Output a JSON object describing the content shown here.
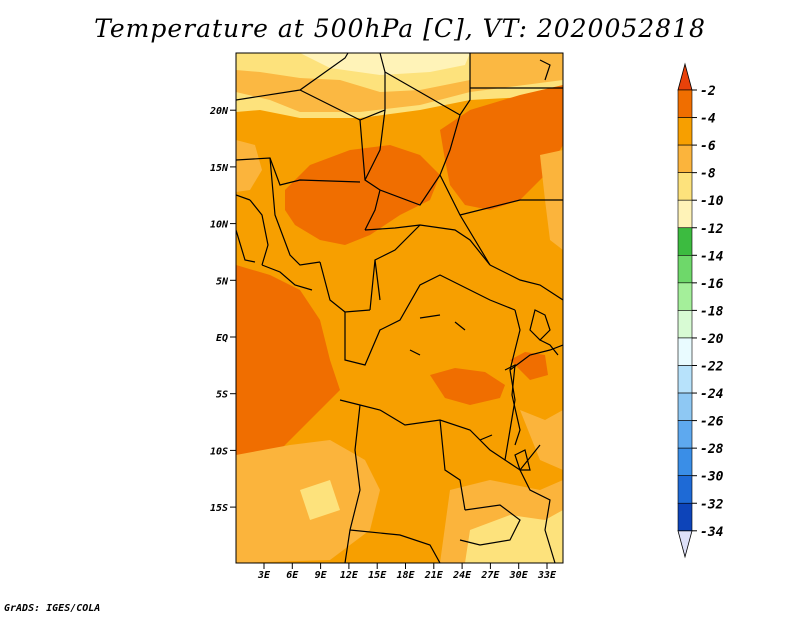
{
  "title": "Temperature at 500hPa [C], VT: 2020052818",
  "credit": "GrADS: IGES/COLA",
  "map": {
    "lat_labels": [
      {
        "label": "20N",
        "lat": 20
      },
      {
        "label": "15N",
        "lat": 15
      },
      {
        "label": "10N",
        "lat": 10
      },
      {
        "label": "5N",
        "lat": 5
      },
      {
        "label": "EQ",
        "lat": 0
      },
      {
        "label": "5S",
        "lat": -5
      },
      {
        "label": "10S",
        "lat": -10
      },
      {
        "label": "15S",
        "lat": -15
      }
    ],
    "lon_labels": [
      {
        "label": "3E",
        "lon": 3
      },
      {
        "label": "6E",
        "lon": 6
      },
      {
        "label": "9E",
        "lon": 9
      },
      {
        "label": "12E",
        "lon": 12
      },
      {
        "label": "15E",
        "lon": 15
      },
      {
        "label": "18E",
        "lon": 18
      },
      {
        "label": "21E",
        "lon": 21
      },
      {
        "label": "24E",
        "lon": 24
      },
      {
        "label": "27E",
        "lon": 27
      },
      {
        "label": "30E",
        "lon": 30
      },
      {
        "label": "33E",
        "lon": 33
      }
    ]
  },
  "colorbar": {
    "labels": [
      "-2",
      "-4",
      "-6",
      "-8",
      "-10",
      "-12",
      "-14",
      "-16",
      "-18",
      "-20",
      "-22",
      "-24",
      "-26",
      "-28",
      "-30",
      "-32",
      "-34"
    ],
    "colors": [
      "#e8410a",
      "#f06e00",
      "#f79f00",
      "#fbb43c",
      "#fde27c",
      "#fff3b8",
      "#3cbb40",
      "#6ed86a",
      "#a4ef9a",
      "#d8fbd4",
      "#e9fbff",
      "#b7e2fb",
      "#8ec8f3",
      "#5ea9ef",
      "#3a8ee7",
      "#1e6ad6",
      "#0d44b9",
      "#0b1a78"
    ],
    "top_color": "#e8410a",
    "bottom_color": "#dde0f8"
  },
  "colors": {
    "dark_orange": "#f06e00",
    "orange": "#f79f00",
    "light_orange": "#fbb43c",
    "pale_yellow": "#fde27c",
    "borders": "#000000"
  }
}
